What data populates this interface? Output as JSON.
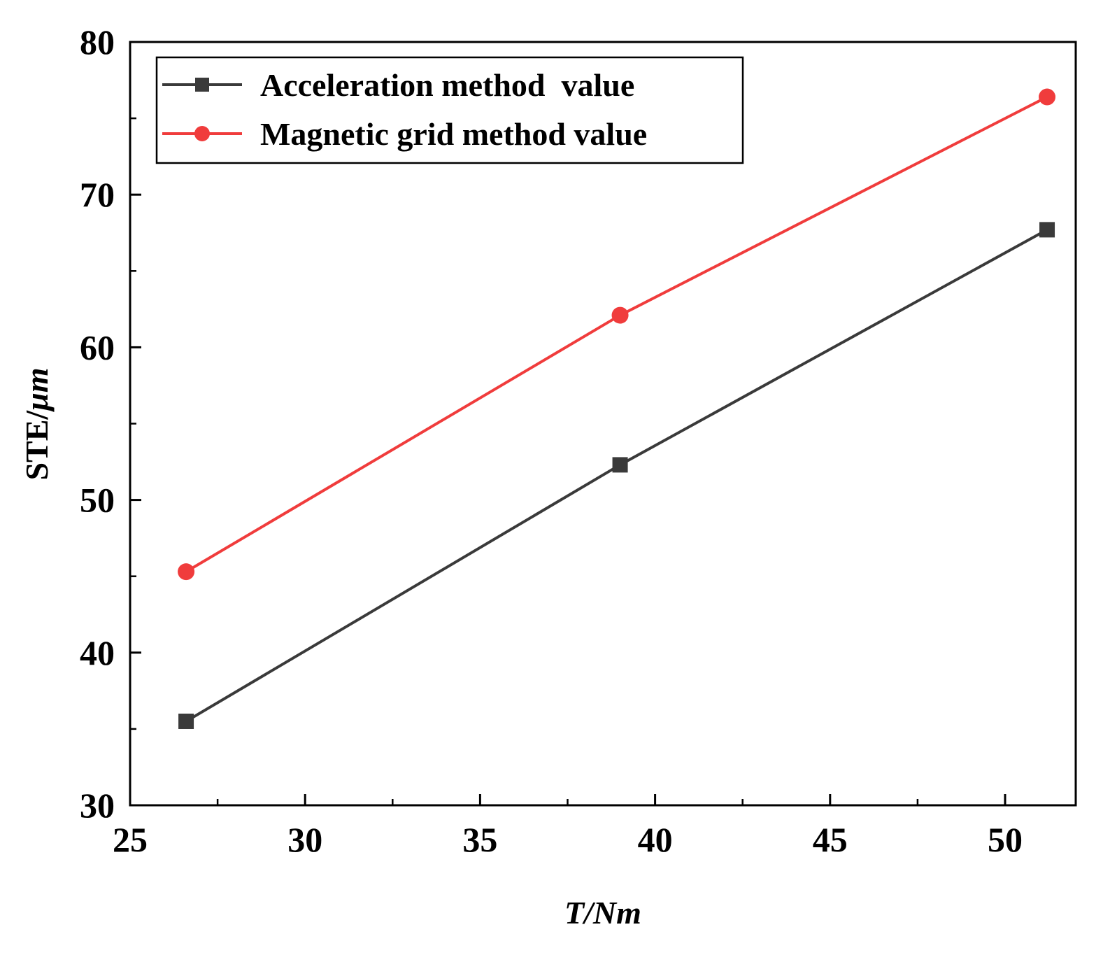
{
  "chart_data": {
    "type": "line",
    "title": "",
    "xlabel": "T/Nm",
    "ylabel_prefix": "STE/",
    "ylabel_unit": "μm",
    "xlim": [
      25,
      52
    ],
    "ylim": [
      30,
      80
    ],
    "xticks": [
      25,
      30,
      35,
      40,
      45,
      50
    ],
    "yticks": [
      30,
      40,
      50,
      60,
      70,
      80
    ],
    "x_minor_step": 2.5,
    "y_minor_step": 5,
    "grid": false,
    "legend_position": "top-left",
    "series": [
      {
        "name": "Acceleration method  value",
        "color": "#3a3a3a",
        "marker": "square",
        "x": [
          26.6,
          39.0,
          51.2
        ],
        "values": [
          35.5,
          52.3,
          67.7
        ]
      },
      {
        "name": "Magnetic grid method value",
        "color": "#f03c3c",
        "marker": "circle",
        "x": [
          26.6,
          39.0,
          51.2
        ],
        "values": [
          45.3,
          62.1,
          76.4
        ]
      }
    ]
  }
}
